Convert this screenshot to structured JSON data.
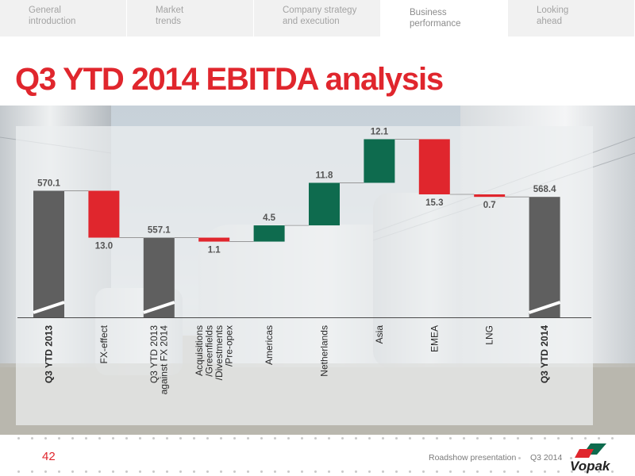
{
  "nav": {
    "tabs": [
      {
        "line1": "General",
        "line2": "introduction"
      },
      {
        "line1": "Market",
        "line2": "trends"
      },
      {
        "line1": "Company strategy",
        "line2": "and execution"
      },
      {
        "line1": "Business",
        "line2": "performance",
        "active": true
      },
      {
        "line1": "Looking",
        "line2": "ahead"
      }
    ]
  },
  "title": "Q3 YTD 2014 EBITDA analysis",
  "colors": {
    "accent": "#e0262d",
    "total_bar": "#5f5f5f",
    "increase_bar": "#0e6b4e",
    "decrease_bar": "#e0262d"
  },
  "chart_data": {
    "type": "bar",
    "subtype": "waterfall",
    "categories": [
      "Q3 YTD 2013",
      "FX-effect",
      "Q3 YTD 2013 against FX 2014",
      "Acquisitions /Greenfields /Divestments /Pre-opex",
      "Americas",
      "Netherlands",
      "Asia",
      "EMEA",
      "LNG",
      "Q3 YTD 2014"
    ],
    "label_lines": [
      [
        "Q3 YTD 2013"
      ],
      [
        "FX-effect"
      ],
      [
        "Q3 YTD 2013",
        "against FX 2014"
      ],
      [
        "Acquisitions",
        "/Greenfields",
        "/Divestments",
        "/Pre-opex"
      ],
      [
        "Americas"
      ],
      [
        "Netherlands"
      ],
      [
        "Asia"
      ],
      [
        "EMEA"
      ],
      [
        "LNG"
      ],
      [
        "Q3 YTD 2014"
      ]
    ],
    "bold_labels": [
      true,
      false,
      false,
      false,
      false,
      false,
      false,
      false,
      false,
      true
    ],
    "values": [
      570.1,
      -13.0,
      557.1,
      -1.1,
      4.5,
      11.8,
      12.1,
      -15.3,
      -0.7,
      568.4
    ],
    "value_labels": [
      "570.1",
      "13.0",
      "557.1",
      "1.1",
      "4.5",
      "11.8",
      "12.1",
      "15.3",
      "0.7",
      "568.4"
    ],
    "kinds": [
      "total",
      "decrease",
      "total",
      "decrease",
      "increase",
      "increase",
      "increase",
      "decrease",
      "decrease",
      "total"
    ],
    "axis_break": true,
    "ylim": [
      535,
      590
    ]
  },
  "footer": {
    "page": "42",
    "presentation": "Roadshow presentation",
    "period": "Q3 2014",
    "logo_text": "Vopak"
  }
}
